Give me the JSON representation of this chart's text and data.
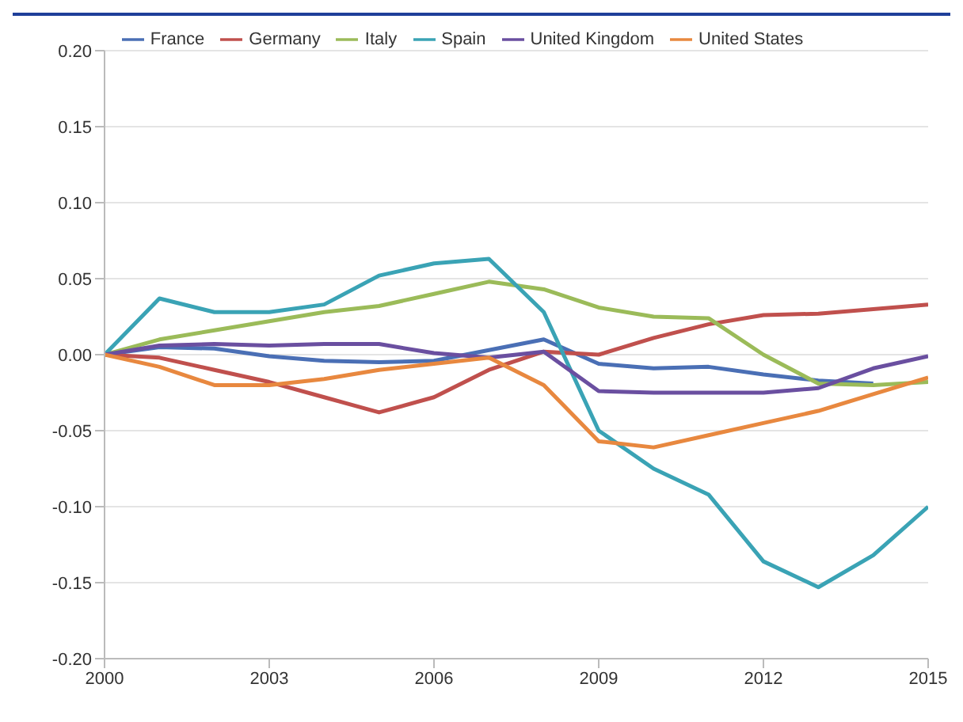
{
  "chart_data": {
    "type": "line",
    "x": [
      2000,
      2001,
      2002,
      2003,
      2004,
      2005,
      2006,
      2007,
      2008,
      2009,
      2010,
      2011,
      2012,
      2013,
      2014,
      2015
    ],
    "series": [
      {
        "name": "France",
        "color": "#4a6fb5",
        "values": [
          0,
          0.005,
          0.004,
          -0.001,
          -0.004,
          -0.005,
          -0.004,
          0.003,
          0.01,
          -0.006,
          -0.009,
          -0.008,
          -0.013,
          -0.017,
          -0.019,
          null
        ]
      },
      {
        "name": "Germany",
        "color": "#c0504d",
        "values": [
          0,
          -0.002,
          -0.01,
          -0.018,
          -0.028,
          -0.038,
          -0.028,
          -0.01,
          0.002,
          0,
          0.011,
          0.02,
          0.026,
          0.027,
          0.03,
          0.033
        ]
      },
      {
        "name": "Italy",
        "color": "#9bbb59",
        "values": [
          0,
          0.01,
          0.016,
          0.022,
          0.028,
          0.032,
          0.04,
          0.048,
          0.043,
          0.031,
          0.025,
          0.024,
          0,
          -0.019,
          -0.02,
          -0.018
        ]
      },
      {
        "name": "Spain",
        "color": "#3aa3b5",
        "values": [
          0,
          0.037,
          0.028,
          0.028,
          0.033,
          0.052,
          0.06,
          0.063,
          0.028,
          -0.05,
          -0.075,
          -0.092,
          -0.136,
          -0.153,
          -0.132,
          -0.1
        ]
      },
      {
        "name": "United Kingdom",
        "color": "#6a4fa0",
        "values": [
          0,
          0.006,
          0.007,
          0.006,
          0.007,
          0.007,
          0.001,
          -0.002,
          0.002,
          -0.024,
          -0.025,
          -0.025,
          -0.025,
          -0.022,
          -0.009,
          -0.001
        ]
      },
      {
        "name": "United States",
        "color": "#e8883f",
        "values": [
          0,
          -0.008,
          -0.02,
          -0.02,
          -0.016,
          -0.01,
          -0.006,
          -0.002,
          -0.02,
          -0.057,
          -0.061,
          -0.053,
          -0.045,
          -0.037,
          -0.026,
          -0.015
        ]
      }
    ],
    "xlim": [
      2000,
      2015
    ],
    "xticks": [
      2000,
      2003,
      2006,
      2009,
      2012,
      2015
    ],
    "ylim": [
      -0.2,
      0.2
    ],
    "yticks": [
      {
        "value": -0.2,
        "label": "-0.20"
      },
      {
        "value": -0.15,
        "label": "-0.15"
      },
      {
        "value": -0.1,
        "label": "-0.10"
      },
      {
        "value": -0.05,
        "label": "-0.05"
      },
      {
        "value": 0,
        "label": "0.00"
      },
      {
        "value": 0.05,
        "label": "0.05"
      },
      {
        "value": 0.1,
        "label": "0.10"
      },
      {
        "value": 0.15,
        "label": "0.15"
      },
      {
        "value": 0.2,
        "label": "0.20"
      }
    ],
    "grid": "y",
    "legend": "top",
    "marker": "none",
    "line_style": "solid"
  }
}
